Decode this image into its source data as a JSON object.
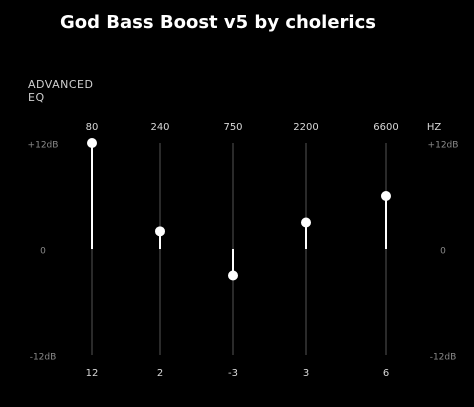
{
  "chart_data": {
    "type": "eq-sliders",
    "title": "God Bass Boost v5 by cholerics",
    "panel_label": "ADVANCED EQ",
    "xlabel": "HZ",
    "categories": [
      "80",
      "240",
      "750",
      "2200",
      "6600"
    ],
    "values": [
      12,
      2,
      -3,
      3,
      6
    ],
    "ylim": [
      -12,
      12
    ],
    "yticks": [
      {
        "value": 12,
        "label": "+12dB"
      },
      0,
      {
        "value": -12,
        "label": "-12dB"
      }
    ],
    "color": "#ffffff"
  }
}
